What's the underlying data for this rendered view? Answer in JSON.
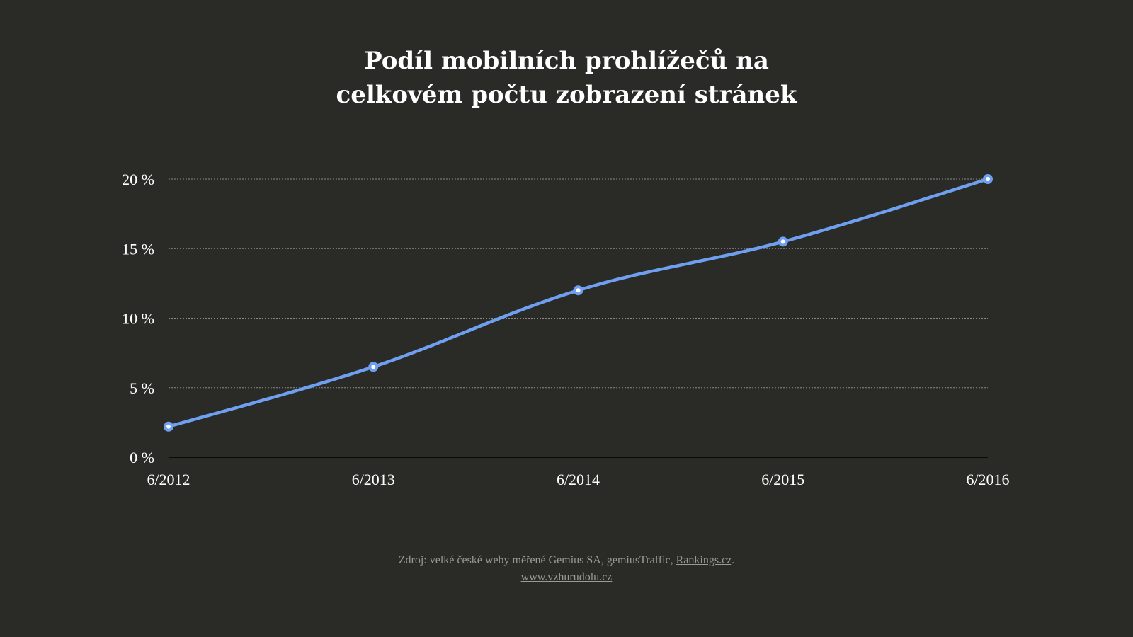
{
  "chart_data": {
    "type": "line",
    "title_lines": [
      "Podíl mobilních prohlížečů na",
      "celkovém počtu zobrazení stránek"
    ],
    "categories": [
      "6/2012",
      "6/2013",
      "6/2014",
      "6/2015",
      "6/2016"
    ],
    "series": [
      {
        "values": [
          2.2,
          6.5,
          12.0,
          15.5,
          20.0
        ],
        "color": "#6f9ff0"
      }
    ],
    "yticks": [
      0,
      5,
      10,
      15,
      20
    ],
    "ytick_labels": [
      "0 %",
      "5 %",
      "10 %",
      "15 %",
      "20 %"
    ],
    "ylim": [
      0,
      20
    ],
    "grid": true,
    "grid_style": "dotted",
    "xlabel": "",
    "ylabel": ""
  },
  "source": {
    "text": "Zdroj: velké české weby měřené Gemius SA, gemiusTraffic, ",
    "link1": "Rankings.cz",
    "after_link1": ".",
    "link2": "www.vzhurudolu.cz"
  },
  "colors": {
    "background": "#2a2a27",
    "line": "#6f9ff0",
    "grid": "#8a8a86",
    "axis": "#000000",
    "text": "#ffffff",
    "source_text": "#9a9a96"
  }
}
